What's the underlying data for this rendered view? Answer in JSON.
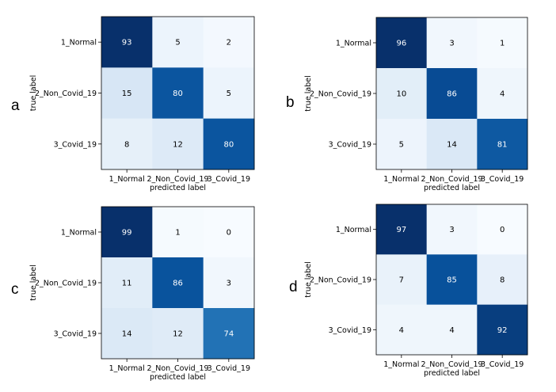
{
  "panels": [
    {
      "letter": "a"
    },
    {
      "letter": "b"
    },
    {
      "letter": "c"
    },
    {
      "letter": "d"
    }
  ],
  "chart_data": [
    {
      "type": "heatmap",
      "panel": "a",
      "rows": [
        "1_Normal",
        "2_Non_Covid_19",
        "3_Covid_19"
      ],
      "columns": [
        "1_Normal",
        "2_Non_Covid_19",
        "3_Covid_19"
      ],
      "values": [
        [
          93,
          5,
          2
        ],
        [
          15,
          80,
          5
        ],
        [
          8,
          12,
          80
        ]
      ],
      "xlabel": "predicted label",
      "ylabel": "true label",
      "colormap": "Blues",
      "low_color": "#f7fbff",
      "high_color": "#08306b"
    },
    {
      "type": "heatmap",
      "panel": "b",
      "rows": [
        "1_Normal",
        "2_Non_Covid_19",
        "3_Covid_19"
      ],
      "columns": [
        "1_Normal",
        "2_Non_Covid_19",
        "3_Covid_19"
      ],
      "values": [
        [
          96,
          3,
          1
        ],
        [
          10,
          86,
          4
        ],
        [
          5,
          14,
          81
        ]
      ],
      "xlabel": "predicted label",
      "ylabel": "true label",
      "colormap": "Blues",
      "low_color": "#f7fbff",
      "high_color": "#08306b"
    },
    {
      "type": "heatmap",
      "panel": "c",
      "rows": [
        "1_Normal",
        "2_Non_Covid_19",
        "3_Covid_19"
      ],
      "columns": [
        "1_Normal",
        "2_Non_Covid_19",
        "3_Covid_19"
      ],
      "values": [
        [
          99,
          1,
          0
        ],
        [
          11,
          86,
          3
        ],
        [
          14,
          12,
          74
        ]
      ],
      "xlabel": "predicted label",
      "ylabel": "true label",
      "colormap": "Blues",
      "low_color": "#f7fbff",
      "high_color": "#08306b"
    },
    {
      "type": "heatmap",
      "panel": "d",
      "rows": [
        "1_Normal",
        "2_Non_Covid_19",
        "3_Covid_19"
      ],
      "columns": [
        "1_Normal",
        "2_Non_Covid_19",
        "3_Covid_19"
      ],
      "values": [
        [
          97,
          3,
          0
        ],
        [
          7,
          85,
          8
        ],
        [
          4,
          4,
          92
        ]
      ],
      "xlabel": "predicted label",
      "ylabel": "true label",
      "colormap": "Blues",
      "low_color": "#f7fbff",
      "high_color": "#08306b"
    }
  ]
}
